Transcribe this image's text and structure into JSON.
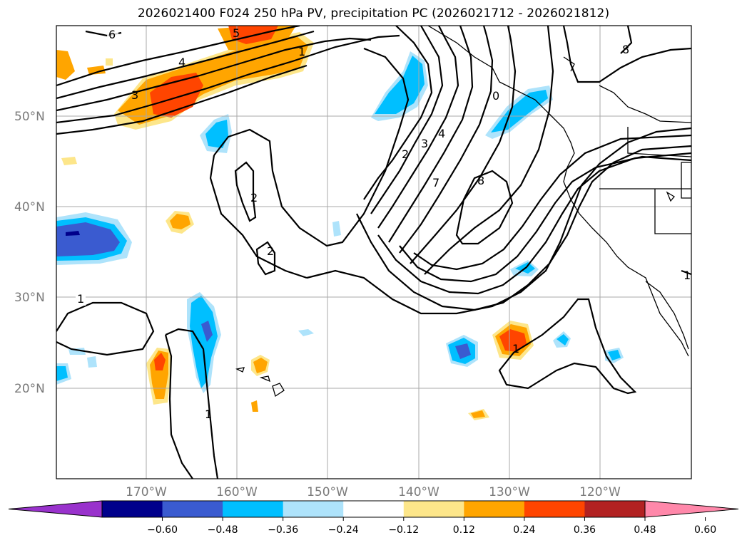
{
  "title": "2026021400 F024 250 hPa PV, precipitation PC (2026021712 - 2026021812)",
  "lat_labels": [
    "50°N",
    "40°N",
    "30°N",
    "20°N"
  ],
  "lon_labels": [
    "170°W",
    "160°W",
    "150°W",
    "140°W",
    "130°W",
    "120°W"
  ],
  "colorbar": {
    "ticks": [
      "−0.60",
      "−0.48",
      "−0.36",
      "−0.24",
      "−0.12",
      "0.12",
      "0.24",
      "0.36",
      "0.48",
      "0.60"
    ],
    "colors": [
      "#9932cc",
      "#00008b",
      "#3a5bd0",
      "#00bfff",
      "#aee3fb",
      "#ffffff",
      "#fde68a",
      "#ffa500",
      "#ff4500",
      "#b22222",
      "#ff88aa"
    ]
  },
  "contour_labels": [
    "6",
    "5",
    "4",
    "3",
    "1",
    "2",
    "3",
    "4",
    "2",
    "8",
    "7",
    "8",
    "0",
    "2",
    "1",
    "1",
    "1",
    "1"
  ]
}
